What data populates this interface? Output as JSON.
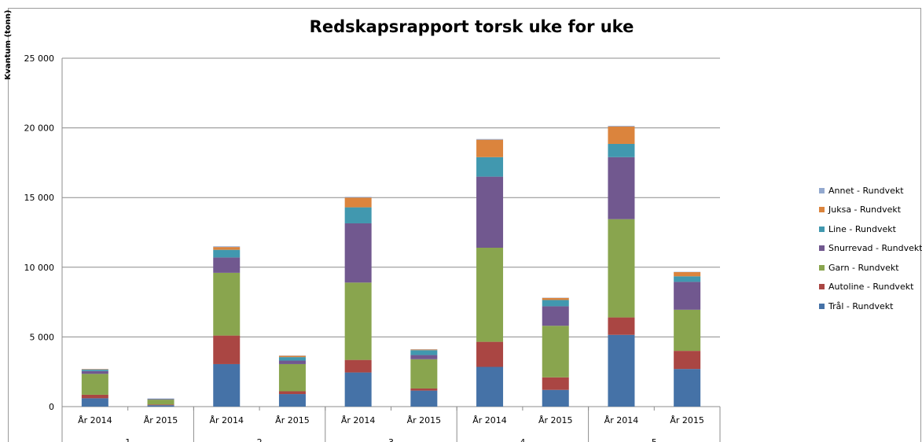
{
  "chart_data": {
    "type": "bar",
    "stacked": true,
    "title": "Redskapsrapport torsk uke for uke",
    "ylabel": "Kvantum (tonn)",
    "xlabel": "",
    "ylim": [
      0,
      25000
    ],
    "yticks": [
      0,
      5000,
      10000,
      15000,
      20000,
      25000
    ],
    "ytick_labels": [
      "0",
      "5 000",
      "10 000",
      "15 000",
      "20 000",
      "25 000"
    ],
    "grid": true,
    "legend_position": "right",
    "groups": [
      "1",
      "2",
      "3",
      "4",
      "5"
    ],
    "categories": [
      "År 2014",
      "År 2015",
      "År 2014",
      "År 2015",
      "År 2014",
      "År 2015",
      "År 2014",
      "År 2015",
      "År 2014",
      "År 2015"
    ],
    "series": [
      {
        "name": "Trål - Rundvekt",
        "color": "#4572a7",
        "values": [
          600,
          100,
          3050,
          900,
          2450,
          1150,
          2850,
          1200,
          5150,
          2700
        ]
      },
      {
        "name": "Autoline - Rundvekt",
        "color": "#aa4643",
        "values": [
          250,
          50,
          2050,
          200,
          900,
          150,
          1800,
          900,
          1250,
          1300
        ]
      },
      {
        "name": "Garn - Rundvekt",
        "color": "#89a54e",
        "values": [
          1500,
          350,
          4500,
          1950,
          5550,
          2100,
          6750,
          3700,
          7050,
          2950
        ]
      },
      {
        "name": "Snurrevad - Rundvekt",
        "color": "#71588f",
        "values": [
          200,
          50,
          1100,
          250,
          4250,
          300,
          5100,
          1400,
          4450,
          2000
        ]
      },
      {
        "name": "Line - Rundvekt",
        "color": "#4198af",
        "values": [
          100,
          20,
          550,
          250,
          1150,
          350,
          1400,
          450,
          950,
          400
        ]
      },
      {
        "name": "Juksa - Rundvekt",
        "color": "#db843d",
        "values": [
          30,
          0,
          200,
          100,
          700,
          50,
          1250,
          150,
          1250,
          300
        ]
      },
      {
        "name": "Annet - Rundvekt",
        "color": "#93a9cf",
        "values": [
          20,
          10,
          50,
          20,
          50,
          20,
          50,
          20,
          50,
          20
        ]
      }
    ]
  }
}
